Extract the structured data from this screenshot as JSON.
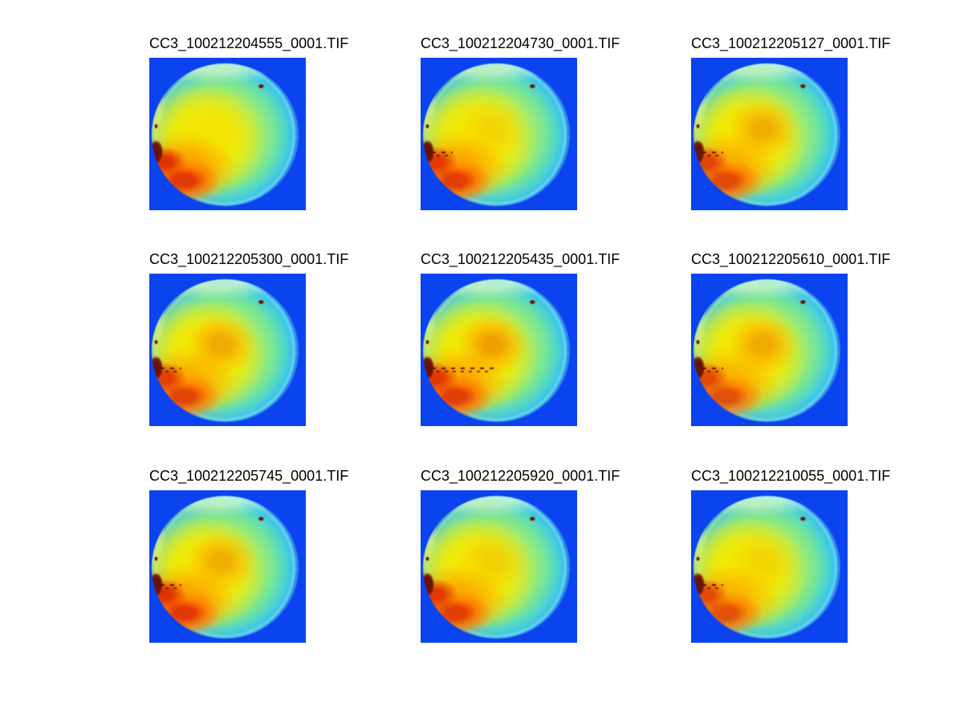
{
  "figure": {
    "background": "#ffffff",
    "title_color": "#000000"
  },
  "palette": {
    "background_blue": "#0b44ee",
    "rim_pale": "#b9f2de",
    "cyan": "#38cfe6",
    "green_cyan": "#5fe6a9",
    "yellow_green": "#c8ee50",
    "yellow": "#f4e800",
    "orange": "#ff9c00",
    "orange_deep": "#ee7800",
    "red": "#e12d00",
    "maroon": "#6b1200"
  },
  "chart_data": {
    "type": "heatmap",
    "layout": {
      "rows": 3,
      "cols": 3,
      "colormap": "jet",
      "axes": "off",
      "subject": "circular dish false-color intensity images"
    },
    "tiles": [
      {
        "title": "CC3_100212204555_0001.TIF",
        "center_hotspot": 0.05,
        "streaks": "none",
        "lower_left_red": 1.0
      },
      {
        "title": "CC3_100212204730_0001.TIF",
        "center_hotspot": 0.2,
        "streaks": "short",
        "lower_left_red": 0.95
      },
      {
        "title": "CC3_100212205127_0001.TIF",
        "center_hotspot": 0.6,
        "streaks": "short",
        "lower_left_red": 0.85
      },
      {
        "title": "CC3_100212205300_0001.TIF",
        "center_hotspot": 0.65,
        "streaks": "short",
        "lower_left_red": 0.9
      },
      {
        "title": "CC3_100212205435_0001.TIF",
        "center_hotspot": 0.75,
        "streaks": "long",
        "lower_left_red": 0.95
      },
      {
        "title": "CC3_100212205610_0001.TIF",
        "center_hotspot": 0.65,
        "streaks": "short",
        "lower_left_red": 0.8
      },
      {
        "title": "CC3_100212205745_0001.TIF",
        "center_hotspot": 0.6,
        "streaks": "short",
        "lower_left_red": 1.0
      },
      {
        "title": "CC3_100212205920_0001.TIF",
        "center_hotspot": 0.25,
        "streaks": "none",
        "lower_left_red": 0.95
      },
      {
        "title": "CC3_100212210055_0001.TIF",
        "center_hotspot": 0.2,
        "streaks": "short",
        "lower_left_red": 0.8
      }
    ]
  }
}
